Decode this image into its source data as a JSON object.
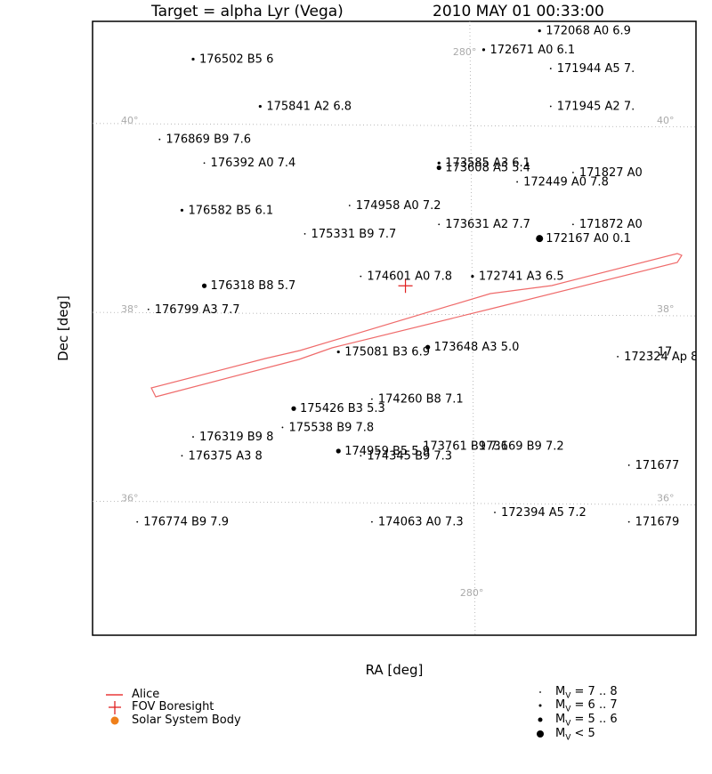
{
  "header": {
    "target": "Target = alpha Lyr (Vega)",
    "datetime": "2010 MAY 01 00:33:00"
  },
  "axes": {
    "xlabel": "RA [deg]",
    "ylabel": "Dec [deg]"
  },
  "chart_data": {
    "type": "scatter",
    "title": "Target = alpha Lyr (Vega)   2010 MAY 01 00:33:00",
    "xlabel": "RA [deg]",
    "ylabel": "Dec [deg]",
    "xlim": [
      283.4,
      278.0
    ],
    "ylim": [
      34.6,
      41.1
    ],
    "grid": {
      "ra_lines": [
        280
      ],
      "ra_labels": [
        "280°",
        "280°"
      ],
      "dec_lines": [
        40,
        38,
        36
      ],
      "dec_labels": {
        "40": "40°",
        "38": "38°",
        "36": "36°"
      }
    },
    "boresight": {
      "ra": 280.6,
      "dec": 38.3
    },
    "stars": [
      {
        "label": "176502 B5 6",
        "ra": 282.5,
        "dec": 40.7,
        "mag": 6.0
      },
      {
        "label": "175841 A2 6.8",
        "ra": 281.9,
        "dec": 40.2,
        "mag": 6.8
      },
      {
        "label": "176869 B9 7.6",
        "ra": 282.8,
        "dec": 39.85,
        "mag": 7.6
      },
      {
        "label": "176392 A0 7.4",
        "ra": 282.4,
        "dec": 39.6,
        "mag": 7.4
      },
      {
        "label": "176582 B5 6.1",
        "ra": 282.6,
        "dec": 39.1,
        "mag": 6.1
      },
      {
        "label": "174958 A0 7.2",
        "ra": 281.1,
        "dec": 39.15,
        "mag": 7.2
      },
      {
        "label": "175331 B9 7.7",
        "ra": 281.5,
        "dec": 38.85,
        "mag": 7.7
      },
      {
        "label": "173585 A3 6.1",
        "ra": 280.3,
        "dec": 39.6,
        "mag": 6.1
      },
      {
        "label": "173608 A5 5.4",
        "ra": 280.3,
        "dec": 39.55,
        "mag": 5.4
      },
      {
        "label": "173631 A2 7.7",
        "ra": 280.3,
        "dec": 38.95,
        "mag": 7.7
      },
      {
        "label": "174601 A0 7.8",
        "ra": 281.0,
        "dec": 38.4,
        "mag": 7.8
      },
      {
        "label": "176318 B8 5.7",
        "ra": 282.4,
        "dec": 38.3,
        "mag": 5.7
      },
      {
        "label": "176799 A3 7.7",
        "ra": 282.9,
        "dec": 38.05,
        "mag": 7.7
      },
      {
        "label": "175081 B3 6.9",
        "ra": 281.2,
        "dec": 37.6,
        "mag": 6.9
      },
      {
        "label": "173648 A3 5.0",
        "ra": 280.4,
        "dec": 37.65,
        "mag": 5.0
      },
      {
        "label": "172324 Ap 8",
        "ra": 278.7,
        "dec": 37.55,
        "mag": 8.0
      },
      {
        "label": "175426 B3 5.3",
        "ra": 281.6,
        "dec": 37.0,
        "mag": 5.3
      },
      {
        "label": "174260 B8 7.1",
        "ra": 280.9,
        "dec": 37.1,
        "mag": 7.1
      },
      {
        "label": "175538 B9 7.8",
        "ra": 281.7,
        "dec": 36.8,
        "mag": 7.8
      },
      {
        "label": "176319 B9 8",
        "ra": 282.5,
        "dec": 36.7,
        "mag": 8.0
      },
      {
        "label": "176375 A3 8",
        "ra": 282.6,
        "dec": 36.5,
        "mag": 8.0
      },
      {
        "label": "174959 B5 5.9",
        "ra": 281.2,
        "dec": 36.55,
        "mag": 5.9
      },
      {
        "label": "174345 B9 7.3",
        "ra": 281.0,
        "dec": 36.5,
        "mag": 7.3
      },
      {
        "label": "173761 B9 7.6",
        "ra": 280.5,
        "dec": 36.6,
        "mag": 7.6
      },
      {
        "label": "173169 B9 7.2",
        "ra": 280.0,
        "dec": 36.6,
        "mag": 7.2
      },
      {
        "label": "176774 B9 7.9",
        "ra": 283.0,
        "dec": 35.8,
        "mag": 7.9
      },
      {
        "label": "174063 A0 7.3",
        "ra": 280.9,
        "dec": 35.8,
        "mag": 7.3
      },
      {
        "label": "172068 A0 6.9",
        "ra": 279.4,
        "dec": 41.0,
        "mag": 6.9
      },
      {
        "label": "172671 A0 6.1",
        "ra": 279.9,
        "dec": 40.8,
        "mag": 6.1
      },
      {
        "label": "171944 A5 7.",
        "ra": 279.3,
        "dec": 40.6,
        "mag": 7.0
      },
      {
        "label": "171945 A2 7.",
        "ra": 279.3,
        "dec": 40.2,
        "mag": 7.0
      },
      {
        "label": "171827 A0",
        "ra": 279.1,
        "dec": 39.5,
        "mag": 7.5
      },
      {
        "label": "172449 A0 7.8",
        "ra": 279.6,
        "dec": 39.4,
        "mag": 7.8
      },
      {
        "label": "171872 A0",
        "ra": 279.1,
        "dec": 38.95,
        "mag": 7.5
      },
      {
        "label": "172167 A0 0.1",
        "ra": 279.4,
        "dec": 38.8,
        "mag": 0.1
      },
      {
        "label": "172741 A3 6.5",
        "ra": 280.0,
        "dec": 38.4,
        "mag": 6.5
      },
      {
        "label": "171677",
        "ra": 278.6,
        "dec": 36.4,
        "mag": 7.5
      },
      {
        "label": "172394 A5 7.2",
        "ra": 279.8,
        "dec": 35.9,
        "mag": 7.2
      },
      {
        "label": "171679",
        "ra": 278.6,
        "dec": 35.8,
        "mag": 7.5
      },
      {
        "label": "17",
        "ra": 278.4,
        "dec": 37.6,
        "mag": 7.5
      }
    ]
  },
  "legend": {
    "items": [
      {
        "label": "Alice",
        "color": "#ef6b6b"
      },
      {
        "label": "FOV Boresight",
        "color": "#e02020"
      },
      {
        "label": "Solar System Body",
        "color": "#ef7f1a"
      }
    ],
    "magnitudes": [
      {
        "label": "M",
        "sub": "V",
        "range": "= 7 .. 8"
      },
      {
        "label": "M",
        "sub": "V",
        "range": "= 6 .. 7"
      },
      {
        "label": "M",
        "sub": "V",
        "range": "= 5 .. 6"
      },
      {
        "label": "M",
        "sub": "V",
        "range": "< 5"
      }
    ]
  }
}
